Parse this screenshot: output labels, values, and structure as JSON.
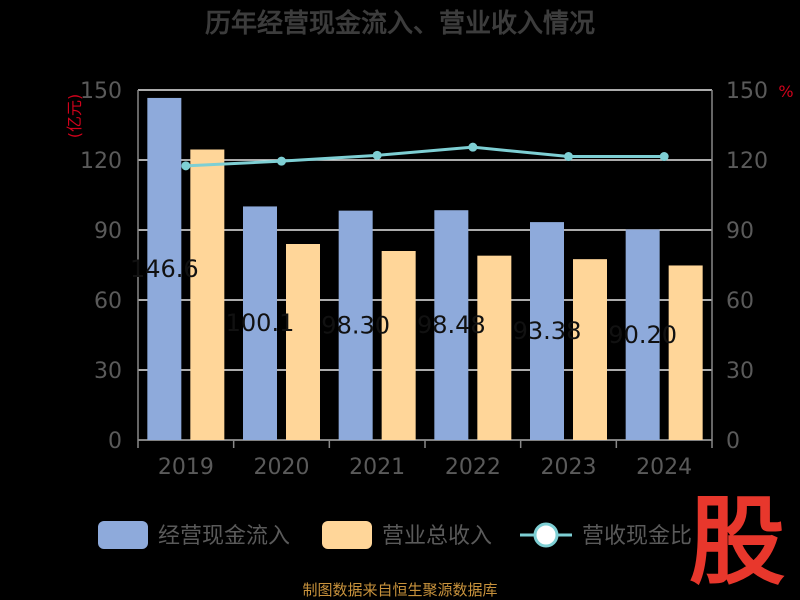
{
  "chart_data": {
    "type": "bar",
    "title": "历年经营现金流入、营业收入情况",
    "categories": [
      "2019",
      "2020",
      "2021",
      "2022",
      "2023",
      "2024"
    ],
    "series": [
      {
        "name": "经营现金流入",
        "type": "bar",
        "axis": "left",
        "color": "#8eaadb",
        "values": [
          146.6,
          100.1,
          98.3,
          98.48,
          93.38,
          90.2
        ],
        "labels": [
          "146.6",
          "100.1",
          "98.30",
          "98.48",
          "93.38",
          "90.20"
        ]
      },
      {
        "name": "营业总收入",
        "type": "bar",
        "axis": "left",
        "color": "#ffd699",
        "values": [
          124.5,
          84,
          81,
          79,
          77.5,
          74.8
        ]
      },
      {
        "name": "营收现金比",
        "type": "line",
        "axis": "right",
        "color": "#7ecfd4",
        "values": [
          117.5,
          119.5,
          122,
          125.5,
          121.5,
          121.5
        ]
      }
    ],
    "ylabel_left": "亿元",
    "ylabel_right": "%",
    "ylim_left": [
      0,
      150
    ],
    "ylim_right": [
      0,
      150
    ],
    "yticks_left": [
      "0",
      "30",
      "60",
      "90",
      "120",
      "150"
    ],
    "yticks_right": [
      "0",
      "30",
      "60",
      "90",
      "120",
      "150"
    ],
    "grid": true,
    "legend_position": "bottom"
  },
  "source": "制图数据来自恒生聚源数据库",
  "watermark": "股"
}
